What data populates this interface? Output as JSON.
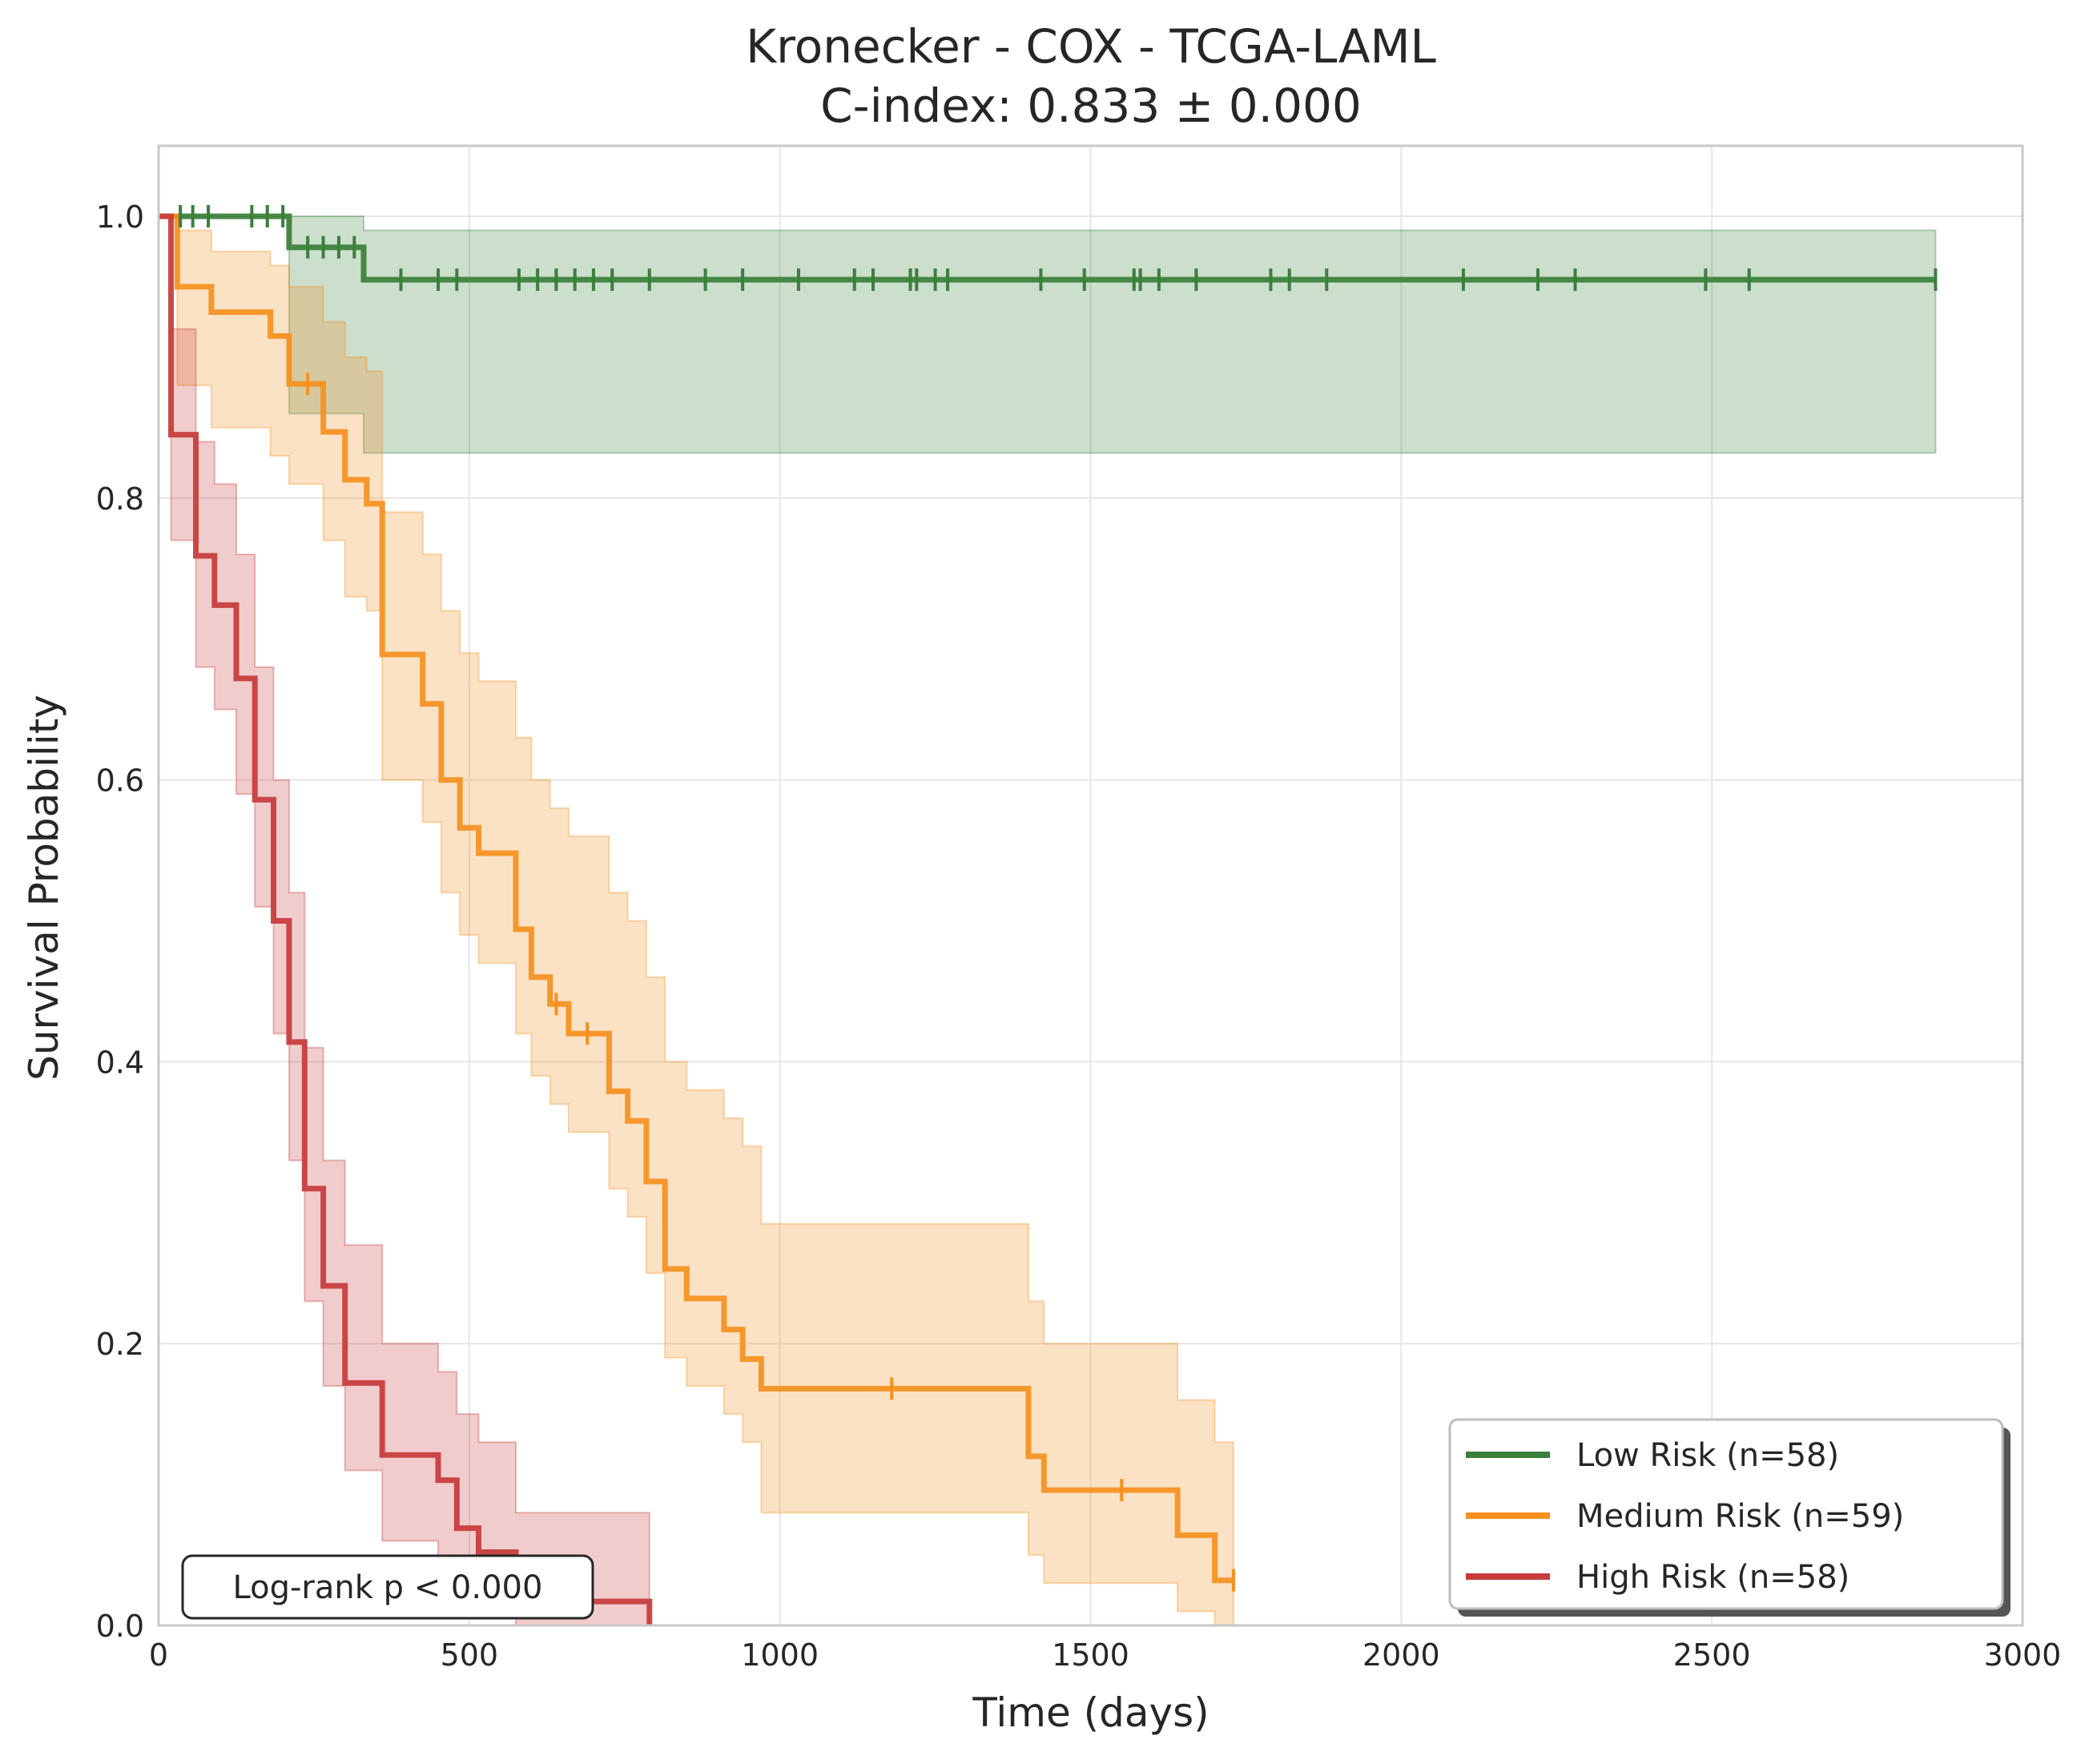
{
  "chart_data": {
    "type": "line",
    "title": "Kronecker - COX - TCGA-LAML",
    "subtitle": "C-index: 0.833 ± 0.000",
    "xlabel": "Time (days)",
    "ylabel": "Survival Probability",
    "xlim": [
      0,
      3000
    ],
    "ylim": [
      0.0,
      1.05
    ],
    "xticks": [
      0,
      500,
      1000,
      1500,
      2000,
      2500,
      3000
    ],
    "xtick_labels": [
      "0",
      "500",
      "1000",
      "1500",
      "2000",
      "2500",
      "3000"
    ],
    "yticks": [
      0.0,
      0.2,
      0.4,
      0.6,
      0.8,
      1.0
    ],
    "ytick_labels": [
      "0.0",
      "0.2",
      "0.4",
      "0.6",
      "0.8",
      "1.0"
    ],
    "grid": true,
    "legend_position": "lower-right",
    "annotation": "Log-rank p < 0.000",
    "series": [
      {
        "name": "Low Risk (n=58)",
        "color": "#3a7f3a",
        "steps": [
          [
            0,
            1.0
          ],
          [
            210,
            0.978
          ],
          [
            330,
            0.955
          ],
          [
            2860,
            0.955
          ]
        ],
        "ci": [
          [
            0,
            1.0,
            1.0
          ],
          [
            210,
            0.86,
            1.0
          ],
          [
            330,
            0.832,
            0.99
          ],
          [
            2860,
            0.832,
            0.99
          ]
        ],
        "censors": [
          [
            35,
            1.0
          ],
          [
            55,
            1.0
          ],
          [
            80,
            1.0
          ],
          [
            150,
            1.0
          ],
          [
            175,
            1.0
          ],
          [
            200,
            1.0
          ],
          [
            240,
            0.978
          ],
          [
            265,
            0.978
          ],
          [
            290,
            0.978
          ],
          [
            315,
            0.978
          ],
          [
            390,
            0.955
          ],
          [
            450,
            0.955
          ],
          [
            480,
            0.955
          ],
          [
            580,
            0.955
          ],
          [
            610,
            0.955
          ],
          [
            640,
            0.955
          ],
          [
            670,
            0.955
          ],
          [
            700,
            0.955
          ],
          [
            730,
            0.955
          ],
          [
            790,
            0.955
          ],
          [
            880,
            0.955
          ],
          [
            940,
            0.955
          ],
          [
            1030,
            0.955
          ],
          [
            1120,
            0.955
          ],
          [
            1150,
            0.955
          ],
          [
            1210,
            0.955
          ],
          [
            1220,
            0.955
          ],
          [
            1250,
            0.955
          ],
          [
            1270,
            0.955
          ],
          [
            1420,
            0.955
          ],
          [
            1490,
            0.955
          ],
          [
            1570,
            0.955
          ],
          [
            1580,
            0.955
          ],
          [
            1610,
            0.955
          ],
          [
            1670,
            0.955
          ],
          [
            1790,
            0.955
          ],
          [
            1820,
            0.955
          ],
          [
            1880,
            0.955
          ],
          [
            2100,
            0.955
          ],
          [
            2220,
            0.955
          ],
          [
            2280,
            0.955
          ],
          [
            2490,
            0.955
          ],
          [
            2560,
            0.955
          ],
          [
            2860,
            0.955
          ]
        ]
      },
      {
        "name": "Medium Risk (n=59)",
        "color": "#f5901e",
        "steps": [
          [
            0,
            1.0
          ],
          [
            30,
            0.95
          ],
          [
            85,
            0.932
          ],
          [
            180,
            0.915
          ],
          [
            210,
            0.881
          ],
          [
            265,
            0.847
          ],
          [
            300,
            0.813
          ],
          [
            335,
            0.796
          ],
          [
            360,
            0.689
          ],
          [
            425,
            0.654
          ],
          [
            455,
            0.6
          ],
          [
            485,
            0.566
          ],
          [
            515,
            0.548
          ],
          [
            575,
            0.494
          ],
          [
            600,
            0.46
          ],
          [
            630,
            0.441
          ],
          [
            660,
            0.42
          ],
          [
            725,
            0.379
          ],
          [
            755,
            0.358
          ],
          [
            785,
            0.315
          ],
          [
            815,
            0.253
          ],
          [
            850,
            0.232
          ],
          [
            910,
            0.21
          ],
          [
            940,
            0.189
          ],
          [
            970,
            0.168
          ],
          [
            1400,
            0.12
          ],
          [
            1425,
            0.096
          ],
          [
            1640,
            0.064
          ],
          [
            1700,
            0.032
          ],
          [
            1730,
            0.032
          ]
        ],
        "ci": [
          [
            0,
            1.0,
            1.0
          ],
          [
            30,
            0.88,
            0.99
          ],
          [
            85,
            0.85,
            0.975
          ],
          [
            180,
            0.83,
            0.965
          ],
          [
            210,
            0.81,
            0.95
          ],
          [
            265,
            0.77,
            0.925
          ],
          [
            300,
            0.73,
            0.9
          ],
          [
            335,
            0.72,
            0.89
          ],
          [
            360,
            0.6,
            0.79
          ],
          [
            425,
            0.57,
            0.76
          ],
          [
            455,
            0.52,
            0.72
          ],
          [
            485,
            0.49,
            0.69
          ],
          [
            515,
            0.47,
            0.67
          ],
          [
            575,
            0.42,
            0.63
          ],
          [
            600,
            0.39,
            0.6
          ],
          [
            630,
            0.37,
            0.58
          ],
          [
            660,
            0.35,
            0.56
          ],
          [
            725,
            0.31,
            0.52
          ],
          [
            755,
            0.29,
            0.5
          ],
          [
            785,
            0.25,
            0.46
          ],
          [
            815,
            0.19,
            0.4
          ],
          [
            850,
            0.17,
            0.38
          ],
          [
            910,
            0.15,
            0.36
          ],
          [
            940,
            0.13,
            0.34
          ],
          [
            970,
            0.08,
            0.285
          ],
          [
            1400,
            0.05,
            0.23
          ],
          [
            1425,
            0.03,
            0.2
          ],
          [
            1640,
            0.01,
            0.16
          ],
          [
            1700,
            0.0,
            0.13
          ],
          [
            1730,
            0.0,
            0.13
          ]
        ],
        "censors": [
          [
            240,
            0.881
          ],
          [
            640,
            0.441
          ],
          [
            690,
            0.42
          ],
          [
            1180,
            0.168
          ],
          [
            1550,
            0.096
          ],
          [
            1730,
            0.032
          ]
        ]
      },
      {
        "name": "High Risk (n=58)",
        "color": "#c73b3b",
        "steps": [
          [
            0,
            1.0
          ],
          [
            20,
            0.845
          ],
          [
            60,
            0.759
          ],
          [
            90,
            0.724
          ],
          [
            125,
            0.672
          ],
          [
            155,
            0.586
          ],
          [
            185,
            0.5
          ],
          [
            210,
            0.414
          ],
          [
            235,
            0.31
          ],
          [
            265,
            0.241
          ],
          [
            300,
            0.172
          ],
          [
            360,
            0.121
          ],
          [
            450,
            0.103
          ],
          [
            480,
            0.069
          ],
          [
            515,
            0.052
          ],
          [
            575,
            0.017
          ],
          [
            790,
            0.0
          ]
        ],
        "ci": [
          [
            0,
            1.0,
            1.0
          ],
          [
            20,
            0.77,
            0.92
          ],
          [
            60,
            0.68,
            0.84
          ],
          [
            90,
            0.65,
            0.81
          ],
          [
            125,
            0.59,
            0.76
          ],
          [
            155,
            0.51,
            0.68
          ],
          [
            185,
            0.42,
            0.6
          ],
          [
            210,
            0.33,
            0.52
          ],
          [
            235,
            0.23,
            0.41
          ],
          [
            265,
            0.17,
            0.33
          ],
          [
            300,
            0.11,
            0.27
          ],
          [
            360,
            0.06,
            0.2
          ],
          [
            450,
            0.04,
            0.18
          ],
          [
            480,
            0.02,
            0.15
          ],
          [
            515,
            0.01,
            0.13
          ],
          [
            575,
            0.0,
            0.08
          ],
          [
            790,
            0.0,
            0.08
          ]
        ],
        "censors": []
      }
    ]
  }
}
